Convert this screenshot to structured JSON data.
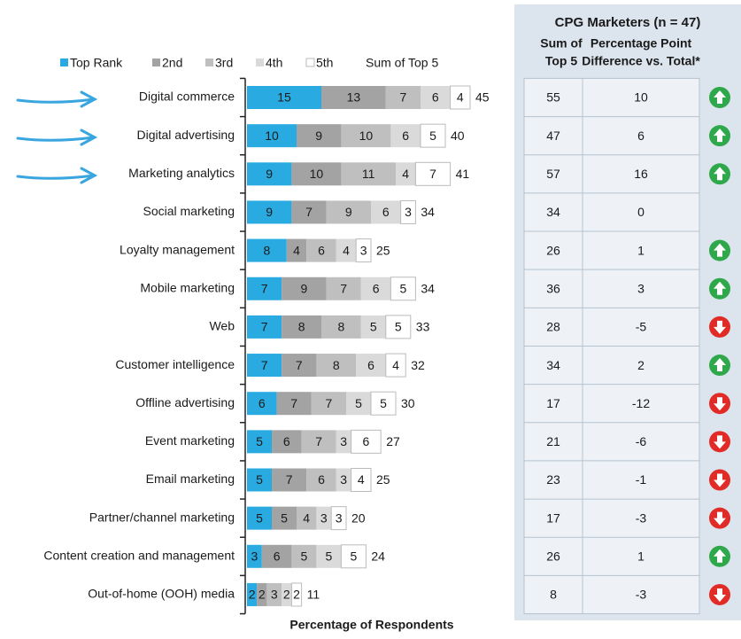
{
  "chart_data": {
    "type": "bar",
    "orientation": "horizontal",
    "stacked": true,
    "categories": [
      "Digital commerce",
      "Digital advertising",
      "Marketing analytics",
      "Social marketing",
      "Loyalty management",
      "Mobile marketing",
      "Web",
      "Customer intelligence",
      "Offline advertising",
      "Event marketing",
      "Email marketing",
      "Partner/channel marketing",
      "Content creation and management",
      "Out-of-home (OOH) media"
    ],
    "series": [
      {
        "name": "Top Rank",
        "color": "#29abe2",
        "values": [
          15,
          10,
          9,
          9,
          8,
          7,
          7,
          7,
          6,
          5,
          5,
          5,
          3,
          2
        ]
      },
      {
        "name": "2nd",
        "color": "#a3a3a3",
        "values": [
          13,
          9,
          10,
          7,
          4,
          9,
          8,
          7,
          7,
          6,
          7,
          5,
          6,
          2
        ]
      },
      {
        "name": "3rd",
        "color": "#bfbfbf",
        "values": [
          7,
          10,
          11,
          9,
          6,
          7,
          8,
          8,
          7,
          7,
          6,
          4,
          5,
          3
        ]
      },
      {
        "name": "4th",
        "color": "#dadada",
        "values": [
          6,
          6,
          4,
          6,
          4,
          6,
          5,
          6,
          5,
          3,
          3,
          3,
          5,
          2
        ]
      },
      {
        "name": "5th",
        "color": "#ffffff",
        "values": [
          4,
          5,
          7,
          3,
          3,
          5,
          5,
          4,
          5,
          6,
          4,
          3,
          5,
          2
        ]
      }
    ],
    "totals_name": "Sum of Top 5",
    "totals": [
      45,
      40,
      41,
      34,
      25,
      34,
      33,
      32,
      30,
      27,
      25,
      20,
      24,
      11
    ],
    "xlabel": "Percentage of Respondents"
  },
  "table": {
    "title": "CPG Marketers (n = 47)",
    "columns": [
      [
        "Sum of",
        "Top 5"
      ],
      [
        "Percentage Point",
        "Difference vs. Total*"
      ]
    ],
    "rows": [
      [
        55,
        10
      ],
      [
        47,
        6
      ],
      [
        57,
        16
      ],
      [
        34,
        0
      ],
      [
        26,
        1
      ],
      [
        36,
        3
      ],
      [
        28,
        -5
      ],
      [
        34,
        2
      ],
      [
        17,
        -12
      ],
      [
        21,
        -6
      ],
      [
        23,
        -1
      ],
      [
        17,
        -3
      ],
      [
        26,
        1
      ],
      [
        8,
        -3
      ]
    ]
  }
}
